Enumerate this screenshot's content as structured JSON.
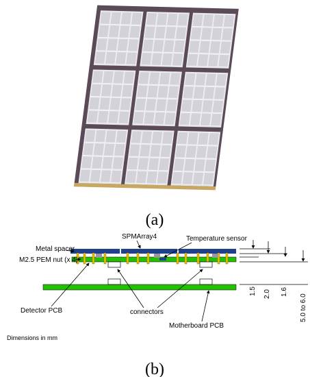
{
  "figure": {
    "panels": [
      {
        "label": "(a)"
      },
      {
        "label": "(b)",
        "callouts": [
          "SPMArray4",
          "Temperature sensor",
          "Metal spacer",
          "M2.5 PEM nut (x 4)",
          "Detector PCB",
          "connectors",
          "Motherboard PCB"
        ],
        "dimensions": [
          "1.5",
          "2.0",
          "1.6",
          "5.0 to 6.0"
        ],
        "note": "Dimensions in mm"
      }
    ]
  }
}
